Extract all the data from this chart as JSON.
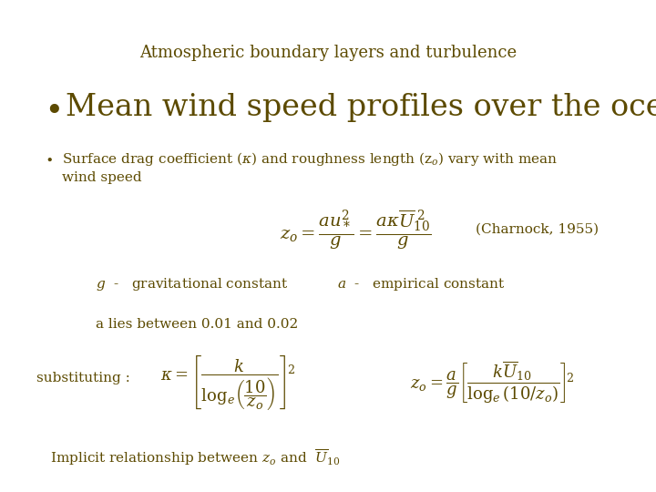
{
  "bg_color": "#ffffff",
  "text_color": "#5c4a00",
  "title": "Atmospheric boundary layers and turbulence",
  "title_fontsize": 13,
  "bullet1": "Mean wind speed profiles over the ocean:",
  "bullet1_fontsize": 24,
  "charnock": "(Charnock, 1955)",
  "g_label": "$g$  -   gravitational constant",
  "a_label": "$a$  -   empirical constant",
  "a_lies": "a lies between 0.01 and 0.02",
  "substituting": "substituting :",
  "implicit": "Implicit relationship between $z_o$ and  $\\overline{U}_{10}$"
}
